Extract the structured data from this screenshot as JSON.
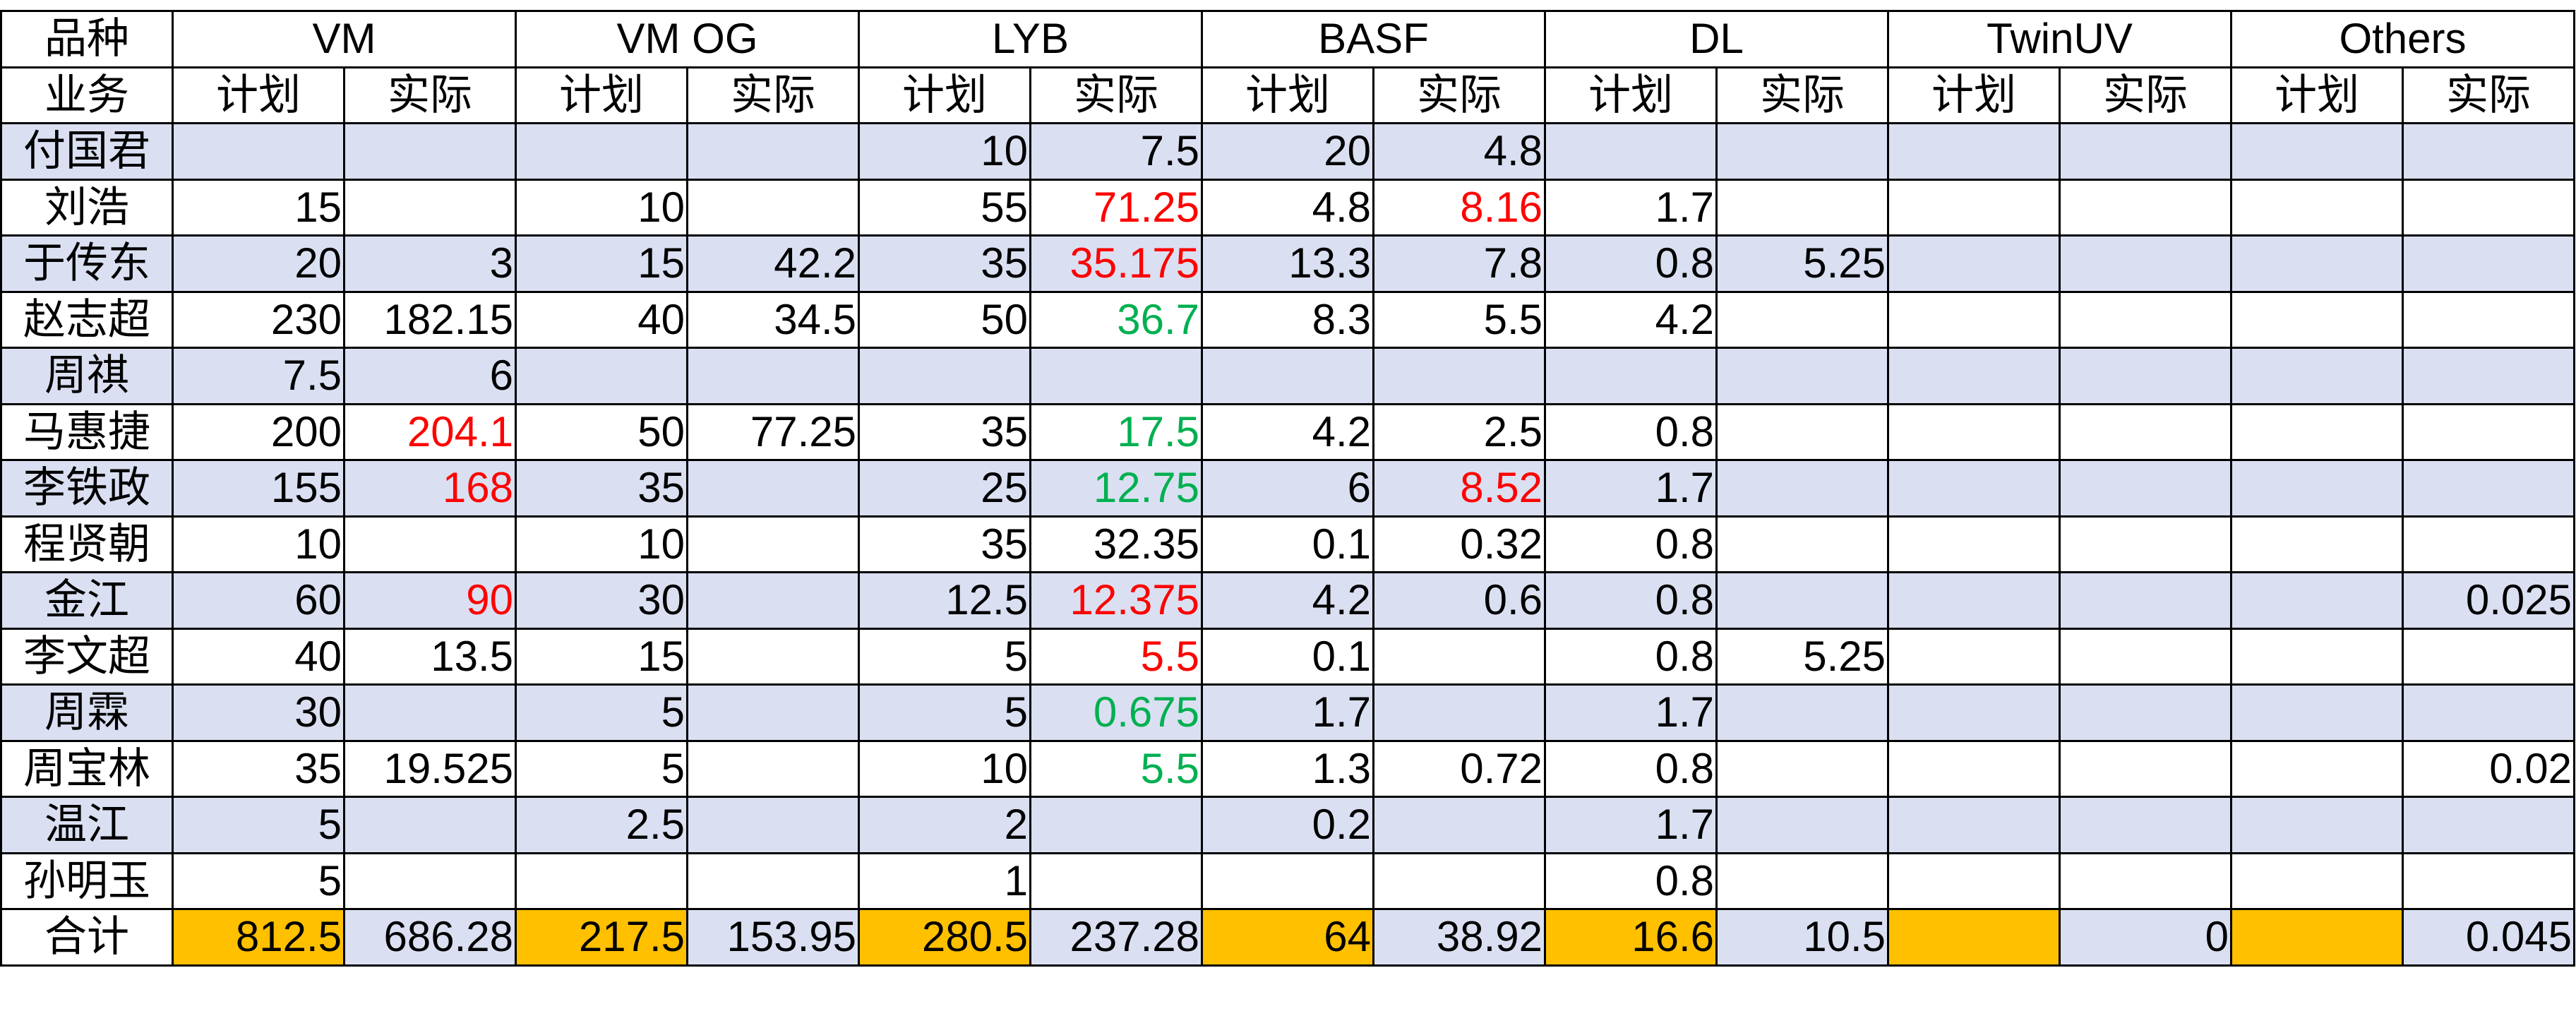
{
  "header": {
    "row1_label": "品种",
    "row2_label": "业务",
    "groups": [
      "VM",
      "VM OG",
      "LYB",
      "BASF",
      "DL",
      "TwinUV",
      "Others"
    ],
    "plan_label": "计划",
    "actual_label": "实际"
  },
  "rows": [
    {
      "name": "付国君",
      "cells": [
        "",
        "",
        "",
        "",
        "10",
        "7.5",
        "20",
        "4.8",
        "",
        "",
        "",
        "",
        "",
        ""
      ],
      "highlight": []
    },
    {
      "name": "刘浩",
      "cells": [
        "15",
        "",
        "10",
        "",
        "55",
        "71.25",
        "4.8",
        "8.16",
        "1.7",
        "",
        "",
        "",
        "",
        ""
      ],
      "highlight": [
        [
          5,
          "red"
        ],
        [
          7,
          "red"
        ]
      ]
    },
    {
      "name": "于传东",
      "cells": [
        "20",
        "3",
        "15",
        "42.2",
        "35",
        "35.175",
        "13.3",
        "7.8",
        "0.8",
        "5.25",
        "",
        "",
        "",
        ""
      ],
      "highlight": [
        [
          5,
          "red"
        ]
      ]
    },
    {
      "name": "赵志超",
      "cells": [
        "230",
        "182.15",
        "40",
        "34.5",
        "50",
        "36.7",
        "8.3",
        "5.5",
        "4.2",
        "",
        "",
        "",
        "",
        ""
      ],
      "highlight": [
        [
          5,
          "green"
        ]
      ]
    },
    {
      "name": "周祺",
      "cells": [
        "7.5",
        "6",
        "",
        "",
        "",
        "",
        "",
        "",
        "",
        "",
        "",
        "",
        "",
        ""
      ],
      "highlight": []
    },
    {
      "name": "马惠捷",
      "cells": [
        "200",
        "204.1",
        "50",
        "77.25",
        "35",
        "17.5",
        "4.2",
        "2.5",
        "0.8",
        "",
        "",
        "",
        "",
        ""
      ],
      "highlight": [
        [
          1,
          "red"
        ],
        [
          5,
          "green"
        ]
      ]
    },
    {
      "name": "李铁政",
      "cells": [
        "155",
        "168",
        "35",
        "",
        "25",
        "12.75",
        "6",
        "8.52",
        "1.7",
        "",
        "",
        "",
        "",
        ""
      ],
      "highlight": [
        [
          1,
          "red"
        ],
        [
          5,
          "green"
        ],
        [
          7,
          "red"
        ]
      ]
    },
    {
      "name": "程贤朝",
      "cells": [
        "10",
        "",
        "10",
        "",
        "35",
        "32.35",
        "0.1",
        "0.32",
        "0.8",
        "",
        "",
        "",
        "",
        ""
      ],
      "highlight": []
    },
    {
      "name": "金江",
      "cells": [
        "60",
        "90",
        "30",
        "",
        "12.5",
        "12.375",
        "4.2",
        "0.6",
        "0.8",
        "",
        "",
        "",
        "",
        "0.025"
      ],
      "highlight": [
        [
          1,
          "red"
        ],
        [
          5,
          "red"
        ]
      ]
    },
    {
      "name": "李文超",
      "cells": [
        "40",
        "13.5",
        "15",
        "",
        "5",
        "5.5",
        "0.1",
        "",
        "0.8",
        "5.25",
        "",
        "",
        "",
        ""
      ],
      "highlight": [
        [
          5,
          "red"
        ]
      ]
    },
    {
      "name": "周霖",
      "cells": [
        "30",
        "",
        "5",
        "",
        "5",
        "0.675",
        "1.7",
        "",
        "1.7",
        "",
        "",
        "",
        "",
        ""
      ],
      "highlight": [
        [
          5,
          "green"
        ]
      ]
    },
    {
      "name": "周宝林",
      "cells": [
        "35",
        "19.525",
        "5",
        "",
        "10",
        "5.5",
        "1.3",
        "0.72",
        "0.8",
        "",
        "",
        "",
        "",
        "0.02"
      ],
      "highlight": [
        [
          5,
          "green"
        ]
      ]
    },
    {
      "name": "温江",
      "cells": [
        "5",
        "",
        "2.5",
        "",
        "2",
        "",
        "0.2",
        "",
        "1.7",
        "",
        "",
        "",
        "",
        ""
      ],
      "highlight": []
    },
    {
      "name": "孙明玉",
      "cells": [
        "5",
        "",
        "",
        "",
        "1",
        "",
        "",
        "",
        "0.8",
        "",
        "",
        "",
        "",
        ""
      ],
      "highlight": []
    }
  ],
  "total": {
    "name": "合计",
    "cells": [
      "812.5",
      "686.28",
      "217.5",
      "153.95",
      "280.5",
      "237.28",
      "64",
      "38.92",
      "16.6",
      "10.5",
      "",
      "0",
      "",
      "0.045"
    ]
  },
  "colors": {
    "band": "#dae0f2",
    "total_plan": "#ffc000",
    "over_target": "#ff0000",
    "under_target": "#00b050"
  }
}
